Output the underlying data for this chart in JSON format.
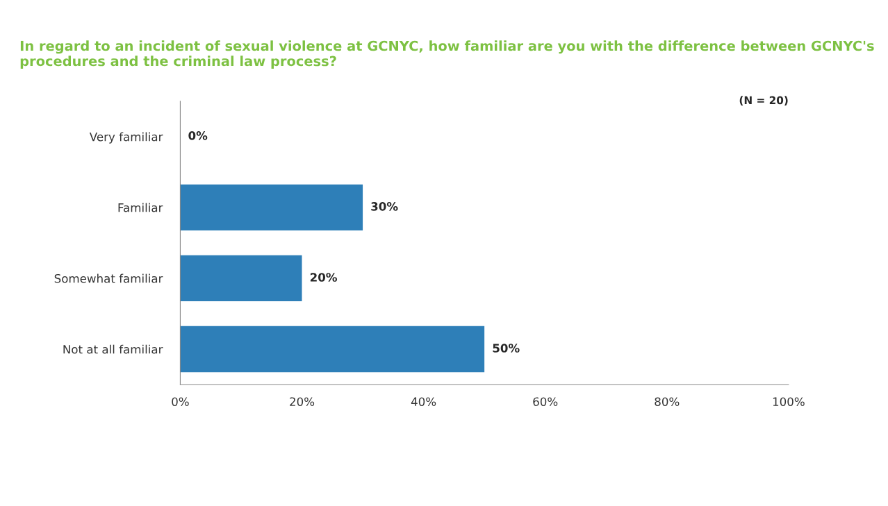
{
  "chart_data": {
    "type": "bar",
    "orientation": "horizontal",
    "title": "In regard to an incident of sexual violence at GCNYC, how familiar are you with the difference between GCNYC's procedures and the criminal law process?",
    "categories": [
      "Very familiar",
      "Familiar",
      "Somewhat familiar",
      "Not at all familiar"
    ],
    "values": [
      0,
      30,
      20,
      50
    ],
    "color": "#2e7fb8",
    "value_labels": [
      "0%",
      "30%",
      "20%",
      "50%"
    ],
    "xlim": [
      0,
      100
    ],
    "xticks": [
      {
        "value": 0,
        "label": "0%"
      },
      {
        "value": 20,
        "label": "20%"
      },
      {
        "value": 40,
        "label": "40%"
      },
      {
        "value": 60,
        "label": "60%"
      },
      {
        "value": 80,
        "label": "80%"
      },
      {
        "value": 100,
        "label": "100%"
      }
    ],
    "annotations": [
      "(N = 20)"
    ],
    "grid": false,
    "legend": false
  }
}
